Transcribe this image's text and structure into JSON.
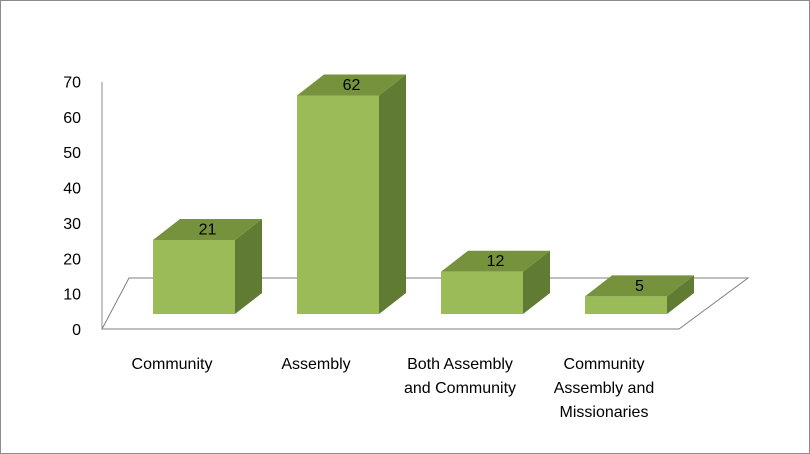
{
  "chart_data": {
    "type": "bar",
    "style": "3d-column",
    "categories": [
      [
        "Community"
      ],
      [
        "Assembly"
      ],
      [
        "Both Assembly",
        "and Community"
      ],
      [
        "Community",
        "Assembly and",
        "Missionaries"
      ]
    ],
    "values": [
      21,
      62,
      12,
      5
    ],
    "data_labels": [
      "21",
      "62",
      "12",
      "5"
    ],
    "ylim": [
      0,
      70
    ],
    "yticks": [
      "0",
      "10",
      "20",
      "30",
      "40",
      "50",
      "60",
      "70"
    ],
    "grid": false,
    "legend": false,
    "colors": {
      "front": "#9bbb59",
      "side": "#607b32",
      "top": "#76923c",
      "floor_line": "#7f7f7f"
    }
  }
}
